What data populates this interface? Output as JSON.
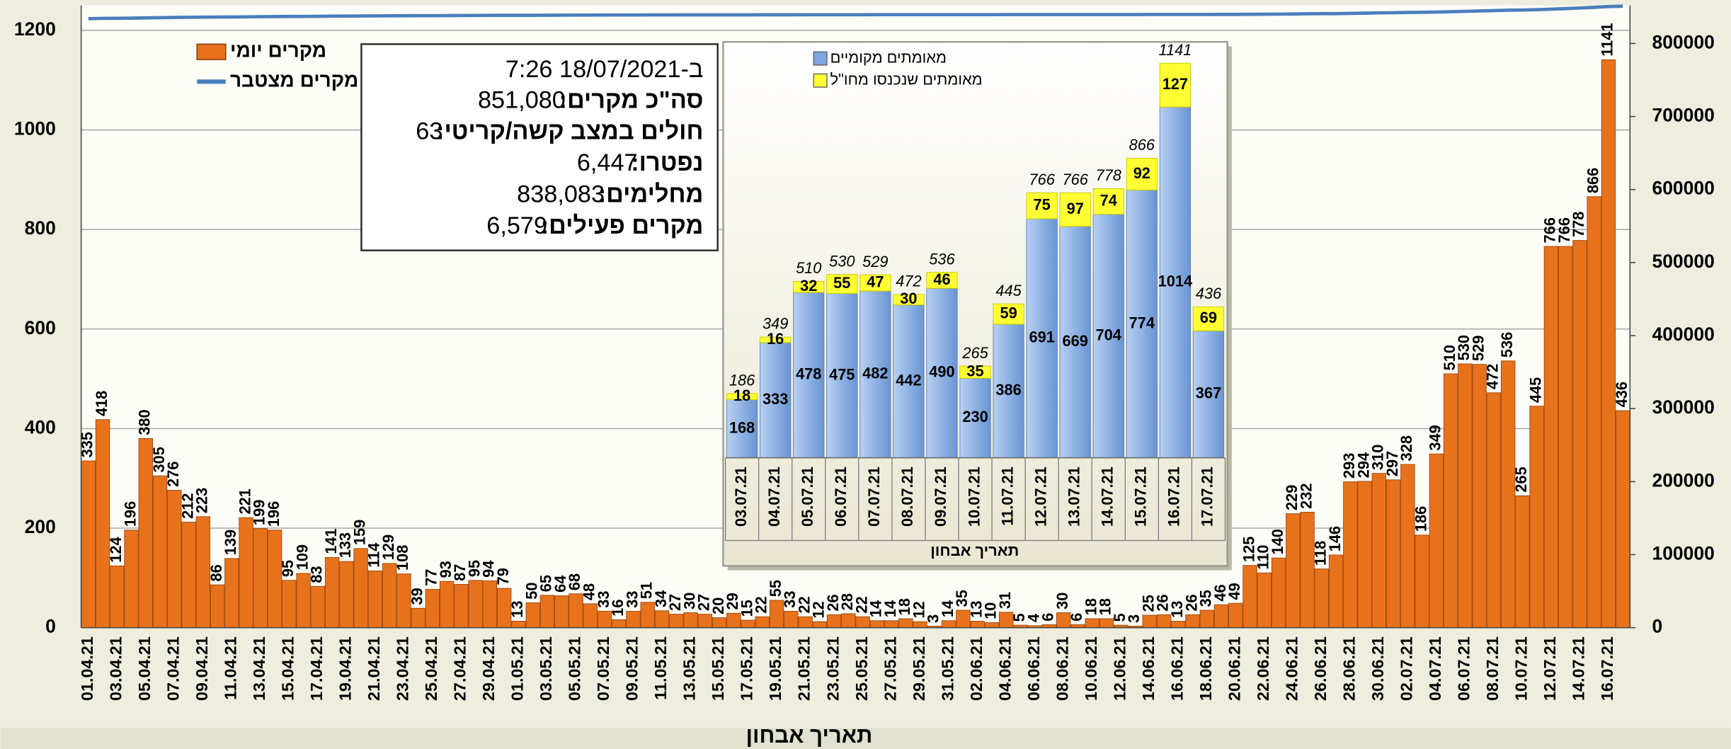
{
  "chart_data": [
    {
      "type": "bar",
      "xlabel": "תאריך אבחון",
      "categories": [
        "01.04.21",
        null,
        "03.04.21",
        null,
        "05.04.21",
        null,
        "07.04.21",
        null,
        "09.04.21",
        null,
        "11.04.21",
        null,
        "13.04.21",
        null,
        "15.04.21",
        null,
        "17.04.21",
        null,
        "19.04.21",
        null,
        "21.04.21",
        null,
        "23.04.21",
        null,
        "25.04.21",
        null,
        "27.04.21",
        null,
        "29.04.21",
        null,
        "01.05.21",
        null,
        "03.05.21",
        null,
        "05.05.21",
        null,
        "07.05.21",
        null,
        "09.05.21",
        null,
        "11.05.21",
        null,
        "13.05.21",
        null,
        "15.05.21",
        null,
        "17.05.21",
        null,
        "19.05.21",
        null,
        "21.05.21",
        null,
        "23.05.21",
        null,
        "25.05.21",
        null,
        "27.05.21",
        null,
        "29.05.21",
        null,
        "31.05.21",
        null,
        "02.06.21",
        null,
        "04.06.21",
        null,
        "06.06.21",
        null,
        "08.06.21",
        null,
        "10.06.21",
        null,
        "12.06.21",
        null,
        "14.06.21",
        null,
        "16.06.21",
        null,
        "18.06.21",
        null,
        "20.06.21",
        null,
        "22.06.21",
        null,
        "24.06.21",
        null,
        "26.06.21",
        null,
        "28.06.21",
        null,
        "30.06.21",
        null,
        "02.07.21",
        null,
        "04.07.21",
        null,
        "06.07.21",
        null,
        "08.07.21",
        null,
        "10.07.21",
        null,
        "12.07.21",
        null,
        "14.07.21",
        null,
        "16.07.21",
        null
      ],
      "series": [
        {
          "name": "מקרים יומי",
          "color": "#e8721c",
          "values": [
            335,
            418,
            124,
            196,
            380,
            305,
            276,
            212,
            223,
            86,
            139,
            221,
            199,
            196,
            95,
            109,
            83,
            141,
            133,
            159,
            114,
            129,
            108,
            39,
            77,
            93,
            87,
            95,
            94,
            79,
            13,
            50,
            65,
            64,
            68,
            48,
            33,
            16,
            33,
            51,
            34,
            27,
            30,
            27,
            20,
            29,
            15,
            22,
            55,
            33,
            22,
            12,
            26,
            28,
            22,
            14,
            14,
            18,
            12,
            3,
            14,
            35,
            13,
            10,
            31,
            5,
            4,
            6,
            30,
            6,
            18,
            18,
            5,
            3,
            25,
            26,
            13,
            26,
            35,
            46,
            49,
            125,
            110,
            140,
            229,
            232,
            118,
            146,
            293,
            294,
            310,
            297,
            328,
            186,
            349,
            510,
            530,
            529,
            472,
            536,
            265,
            445,
            766,
            766,
            778,
            866,
            1141,
            436
          ]
        },
        {
          "name": "מקרים מצטבר",
          "color": "#4a7ebb",
          "axis": "y2",
          "type": "line",
          "values": [
            834000,
            834400,
            834500,
            834700,
            835100,
            835400,
            835700,
            835900,
            836100,
            836200,
            836300,
            836500,
            836700,
            836900,
            837000,
            837100,
            837200,
            837400,
            837500,
            837700,
            837800,
            837900,
            838000,
            838100,
            838100,
            838200,
            838300,
            838400,
            838500,
            838600,
            838600,
            838600,
            838700,
            838800,
            838900,
            838900,
            839000,
            839000,
            839000,
            839100,
            839100,
            839100,
            839200,
            839200,
            839200,
            839200,
            839200,
            839300,
            839300,
            839300,
            839400,
            839400,
            839400,
            839400,
            839400,
            839500,
            839500,
            839500,
            839500,
            839500,
            839500,
            839500,
            839500,
            839500,
            839600,
            839600,
            839600,
            839600,
            839600,
            839600,
            839600,
            839600,
            839600,
            839600,
            839700,
            839700,
            839700,
            839700,
            839700,
            839800,
            839800,
            840000,
            840100,
            840200,
            840400,
            840700,
            840800,
            840900,
            841200,
            841500,
            841900,
            842200,
            842500,
            842700,
            843000,
            843500,
            844000,
            844600,
            845000,
            845600,
            845800,
            846300,
            847000,
            847800,
            848600,
            849500,
            850600,
            851100
          ]
        }
      ],
      "ylim": [
        0,
        1250
      ],
      "yticks": [
        0,
        200,
        400,
        600,
        800,
        1000,
        1200
      ],
      "y2lim": [
        0,
        852000
      ],
      "y2ticks": [
        0,
        100000,
        200000,
        300000,
        400000,
        500000,
        600000,
        700000,
        800000
      ],
      "grid": true,
      "legend": "upper left"
    },
    {
      "type": "stacked_bar",
      "xlabel": "תאריך אבחון",
      "categories": [
        "03.07.21",
        "04.07.21",
        "05.07.21",
        "06.07.21",
        "07.07.21",
        "08.07.21",
        "09.07.21",
        "10.07.21",
        "11.07.21",
        "12.07.21",
        "13.07.21",
        "14.07.21",
        "15.07.21",
        "16.07.21",
        "17.07.21"
      ],
      "series": [
        {
          "name": "מאומתים מקומיים",
          "color": "#7fa6de",
          "values": [
            168,
            333,
            478,
            475,
            482,
            442,
            490,
            230,
            386,
            691,
            669,
            704,
            774,
            1014,
            367
          ]
        },
        {
          "name": "מאומתים שנכנסו מחו\"ל",
          "color": "#ffff33",
          "values": [
            18,
            16,
            32,
            55,
            47,
            30,
            46,
            35,
            59,
            75,
            97,
            74,
            92,
            127,
            69
          ]
        }
      ],
      "totals": [
        186,
        349,
        510,
        530,
        529,
        472,
        536,
        265,
        445,
        766,
        766,
        778,
        866,
        1141,
        436
      ],
      "ylim": [
        0,
        1180
      ],
      "legend": "upper left"
    }
  ],
  "info_box": {
    "timestamp": "ב-18/07/2021 7:26",
    "items": [
      {
        "label": "סה\"כ מקרים:",
        "value": "851,080"
      },
      {
        "label": "חולים במצב קשה/קריטי:",
        "value": "63"
      },
      {
        "label": "נפטרו:",
        "value": "6,447"
      },
      {
        "label": "מחלימים:",
        "value": "838,083"
      },
      {
        "label": "מקרים פעילים:",
        "value": "6,579"
      }
    ]
  }
}
